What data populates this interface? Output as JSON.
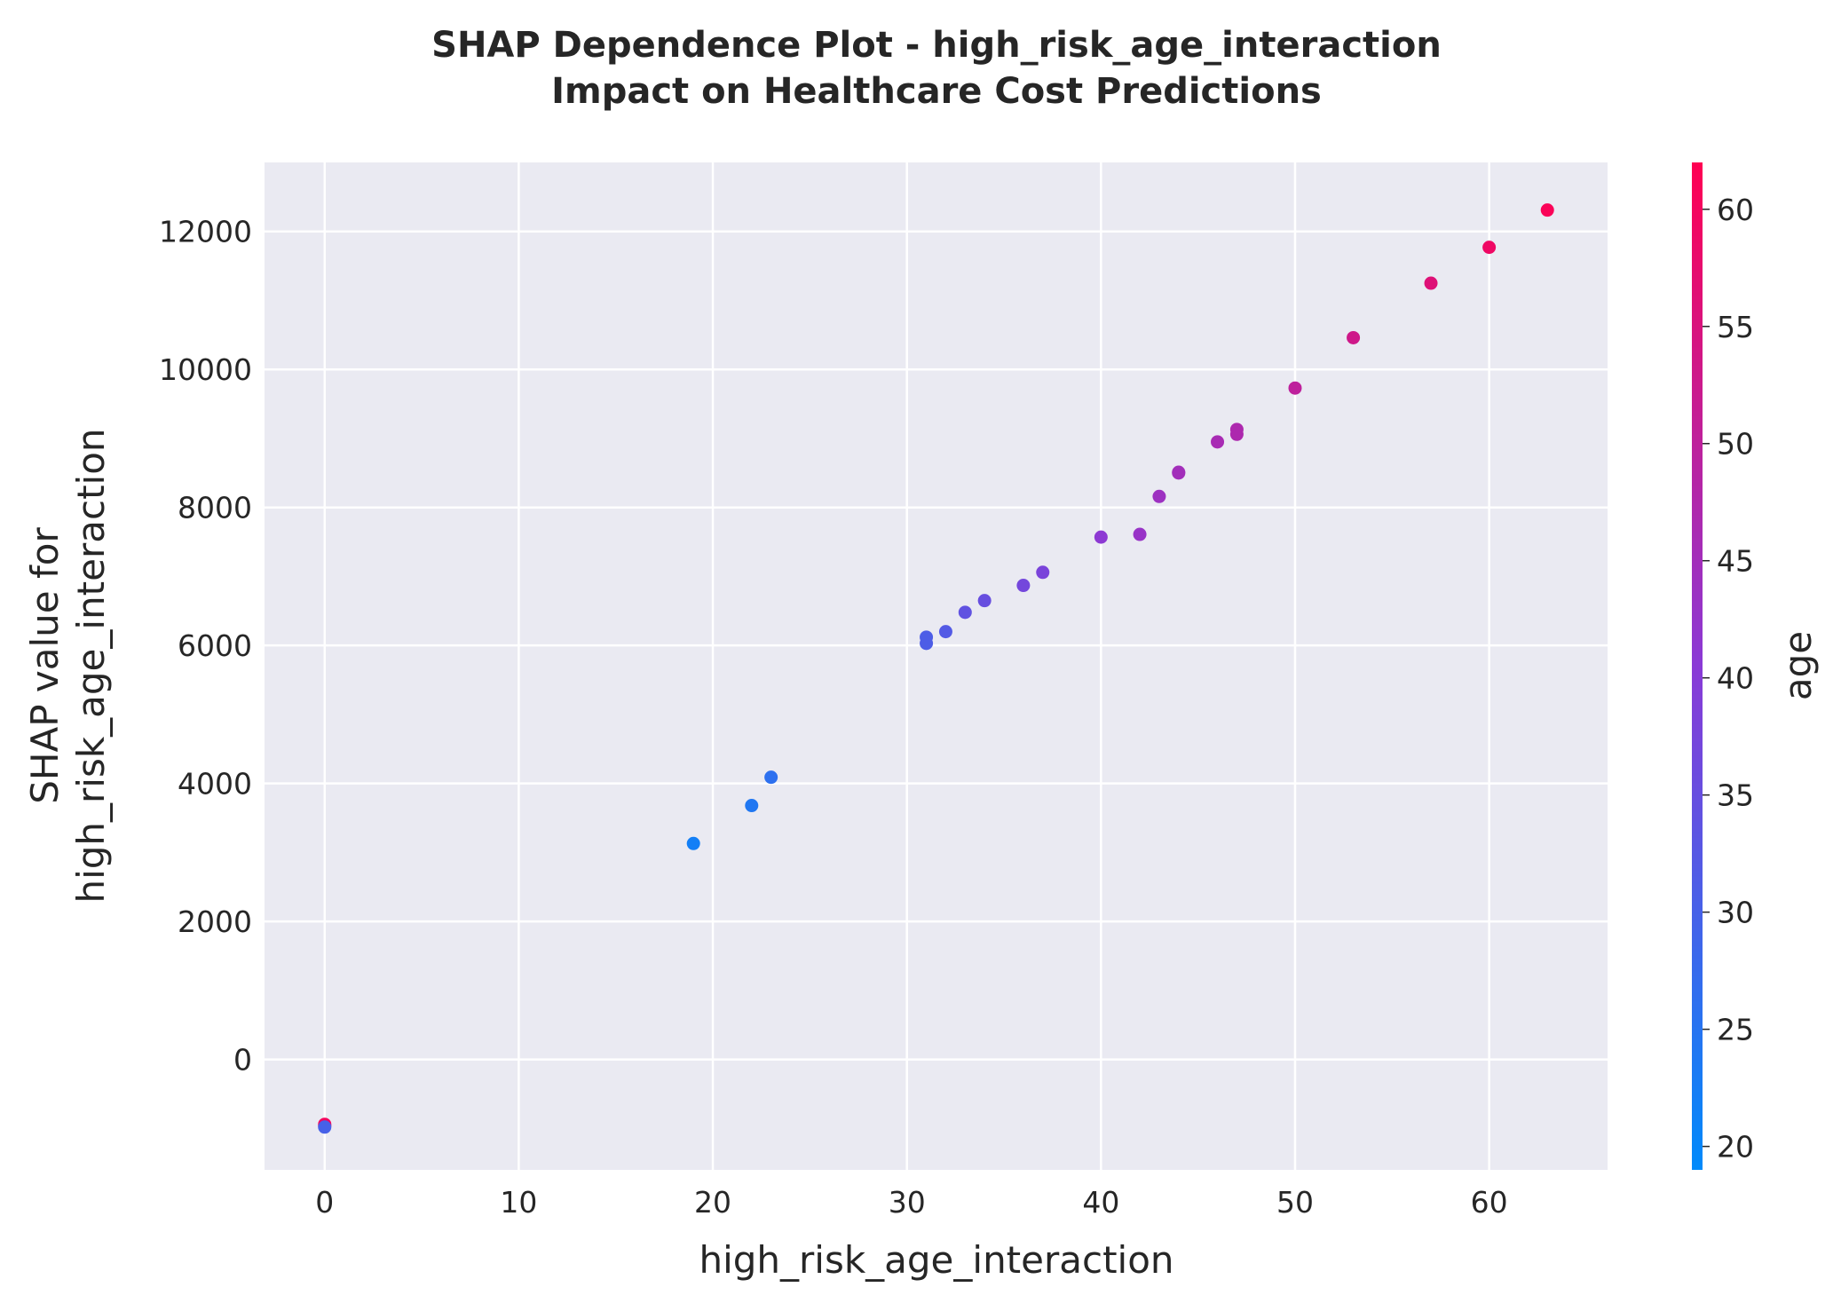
{
  "chart_data": {
    "type": "scatter",
    "title": [
      "SHAP Dependence Plot - high_risk_age_interaction",
      "Impact on Healthcare Cost Predictions"
    ],
    "xlabel": "high_risk_age_interaction",
    "ylabel": [
      "SHAP value for",
      "high_risk_age_interaction"
    ],
    "xlim": [
      -3.1,
      66.1
    ],
    "ylim": [
      -1600,
      13000
    ],
    "xticks": [
      0,
      10,
      20,
      30,
      40,
      50,
      60
    ],
    "yticks": [
      0,
      2000,
      4000,
      6000,
      8000,
      10000,
      12000
    ],
    "grid": true,
    "colorbar": {
      "label": "age",
      "range": [
        19,
        62
      ],
      "ticks": [
        20,
        25,
        30,
        35,
        40,
        45,
        50,
        55,
        60
      ],
      "colormap": [
        "#008afb",
        "#ff0052"
      ]
    },
    "points": [
      {
        "x": 0,
        "y": -960,
        "age": 58
      },
      {
        "x": 0,
        "y": -940,
        "age": 60
      },
      {
        "x": 0,
        "y": -980,
        "age": 30
      },
      {
        "x": 19,
        "y": 3130,
        "age": 22
      },
      {
        "x": 22,
        "y": 3680,
        "age": 24
      },
      {
        "x": 23,
        "y": 4090,
        "age": 26
      },
      {
        "x": 31,
        "y": 6030,
        "age": 31
      },
      {
        "x": 31,
        "y": 6120,
        "age": 31
      },
      {
        "x": 32,
        "y": 6200,
        "age": 32
      },
      {
        "x": 33,
        "y": 6480,
        "age": 34
      },
      {
        "x": 34,
        "y": 6650,
        "age": 35
      },
      {
        "x": 36,
        "y": 6870,
        "age": 37
      },
      {
        "x": 37,
        "y": 7060,
        "age": 38
      },
      {
        "x": 40,
        "y": 7570,
        "age": 41
      },
      {
        "x": 42,
        "y": 7610,
        "age": 43
      },
      {
        "x": 43,
        "y": 8160,
        "age": 44
      },
      {
        "x": 44,
        "y": 8510,
        "age": 45
      },
      {
        "x": 44,
        "y": 8500,
        "age": 45
      },
      {
        "x": 46,
        "y": 8950,
        "age": 46
      },
      {
        "x": 47,
        "y": 9060,
        "age": 47
      },
      {
        "x": 47,
        "y": 9130,
        "age": 47
      },
      {
        "x": 50,
        "y": 9730,
        "age": 50
      },
      {
        "x": 53,
        "y": 10460,
        "age": 53
      },
      {
        "x": 57,
        "y": 11250,
        "age": 56
      },
      {
        "x": 60,
        "y": 11770,
        "age": 59
      },
      {
        "x": 63,
        "y": 12310,
        "age": 61
      }
    ]
  }
}
